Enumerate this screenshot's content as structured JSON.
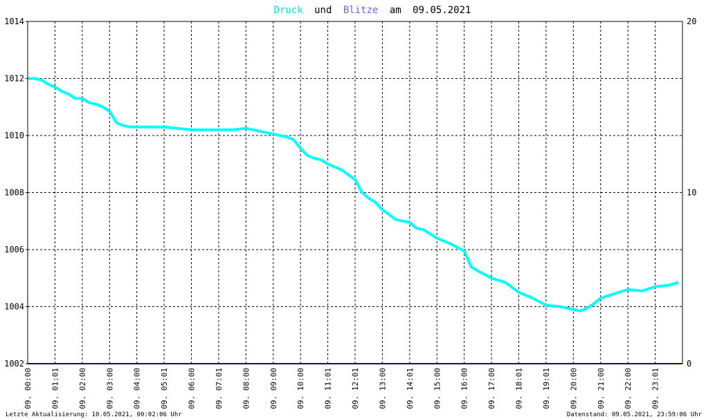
{
  "title": {
    "word1": "Druck",
    "word2": "und",
    "word3": "Blitze",
    "word4": "am",
    "date": "09.05.2021"
  },
  "colors": {
    "pressure": "#00ffff",
    "lightning": "#2a2a8a",
    "grid": "#000000",
    "background": "#ffffff",
    "title_blitze": "#6a6ad0"
  },
  "footer": {
    "left": "Letzte Aktualisierung: 10.05.2021, 00:02:06 Uhr",
    "right": "Datenstand: 09.05.2021, 23:59:06 Uhr"
  },
  "chart_data": {
    "type": "line",
    "title": "Druck und Blitze am 09.05.2021",
    "xlabel": "",
    "ylabel": "",
    "ylim": [
      1002,
      1014
    ],
    "y2lim": [
      0,
      20
    ],
    "yticks": [
      "1002",
      "1004",
      "1006",
      "1008",
      "1010",
      "1012",
      "1014"
    ],
    "y2ticks": [
      "0",
      "10",
      "20"
    ],
    "xlim": [
      0,
      24
    ],
    "grid": true,
    "xticks": [
      {
        "hour": 0,
        "label": "09. 00:00"
      },
      {
        "hour": 1,
        "label": "09. 01:01"
      },
      {
        "hour": 2,
        "label": "09. 02:00"
      },
      {
        "hour": 3,
        "label": "09. 03:00"
      },
      {
        "hour": 4,
        "label": "09. 04:00"
      },
      {
        "hour": 5,
        "label": "09. 05:01"
      },
      {
        "hour": 6,
        "label": "09. 06:00"
      },
      {
        "hour": 7,
        "label": "09. 07:01"
      },
      {
        "hour": 8,
        "label": "09. 08:00"
      },
      {
        "hour": 9,
        "label": "09. 09:00"
      },
      {
        "hour": 10,
        "label": "09. 10:00"
      },
      {
        "hour": 11,
        "label": "09. 11:01"
      },
      {
        "hour": 12,
        "label": "09. 12:01"
      },
      {
        "hour": 13,
        "label": "09. 13:00"
      },
      {
        "hour": 14,
        "label": "09. 14:01"
      },
      {
        "hour": 15,
        "label": "09. 15:00"
      },
      {
        "hour": 16,
        "label": "09. 16:00"
      },
      {
        "hour": 17,
        "label": "09. 17:00"
      },
      {
        "hour": 18,
        "label": "09. 18:01"
      },
      {
        "hour": 19,
        "label": "09. 19:01"
      },
      {
        "hour": 20,
        "label": "09. 20:00"
      },
      {
        "hour": 21,
        "label": "09. 21:00"
      },
      {
        "hour": 22,
        "label": "09. 22:00"
      },
      {
        "hour": 23,
        "label": "09. 23:01"
      }
    ],
    "series": [
      {
        "name": "Druck",
        "axis": "left",
        "x": [
          0,
          0.25,
          0.5,
          0.75,
          1.0,
          1.25,
          1.5,
          1.75,
          2.0,
          2.25,
          2.5,
          2.75,
          3.0,
          3.25,
          3.5,
          3.75,
          4.0,
          4.5,
          5.0,
          5.5,
          6.0,
          6.5,
          7.0,
          7.5,
          8.0,
          8.5,
          9.0,
          9.5,
          9.75,
          10.0,
          10.25,
          10.5,
          10.75,
          11.0,
          11.5,
          12.0,
          12.25,
          12.5,
          12.75,
          13.0,
          13.5,
          14.0,
          14.25,
          14.5,
          14.75,
          15.0,
          15.5,
          16.0,
          16.25,
          16.5,
          17.0,
          17.5,
          18.0,
          18.5,
          19.0,
          19.5,
          20.0,
          20.25,
          20.5,
          20.75,
          21.0,
          21.5,
          22.0,
          22.5,
          23.0,
          23.5,
          23.85
        ],
        "values": [
          1012.0,
          1012.0,
          1011.95,
          1011.8,
          1011.7,
          1011.55,
          1011.45,
          1011.3,
          1011.3,
          1011.15,
          1011.1,
          1011.0,
          1010.85,
          1010.45,
          1010.35,
          1010.3,
          1010.3,
          1010.3,
          1010.3,
          1010.25,
          1010.2,
          1010.2,
          1010.2,
          1010.2,
          1010.25,
          1010.15,
          1010.05,
          1009.95,
          1009.85,
          1009.55,
          1009.3,
          1009.2,
          1009.15,
          1009.0,
          1008.8,
          1008.45,
          1008.0,
          1007.8,
          1007.65,
          1007.4,
          1007.05,
          1006.95,
          1006.75,
          1006.7,
          1006.55,
          1006.4,
          1006.2,
          1005.95,
          1005.4,
          1005.25,
          1005.0,
          1004.85,
          1004.5,
          1004.3,
          1004.05,
          1004.0,
          1003.9,
          1003.85,
          1003.95,
          1004.1,
          1004.3,
          1004.45,
          1004.6,
          1004.55,
          1004.7,
          1004.75,
          1004.85
        ]
      },
      {
        "name": "Blitze",
        "axis": "right",
        "x": [
          0,
          23.99
        ],
        "values": [
          0,
          0
        ]
      }
    ]
  }
}
